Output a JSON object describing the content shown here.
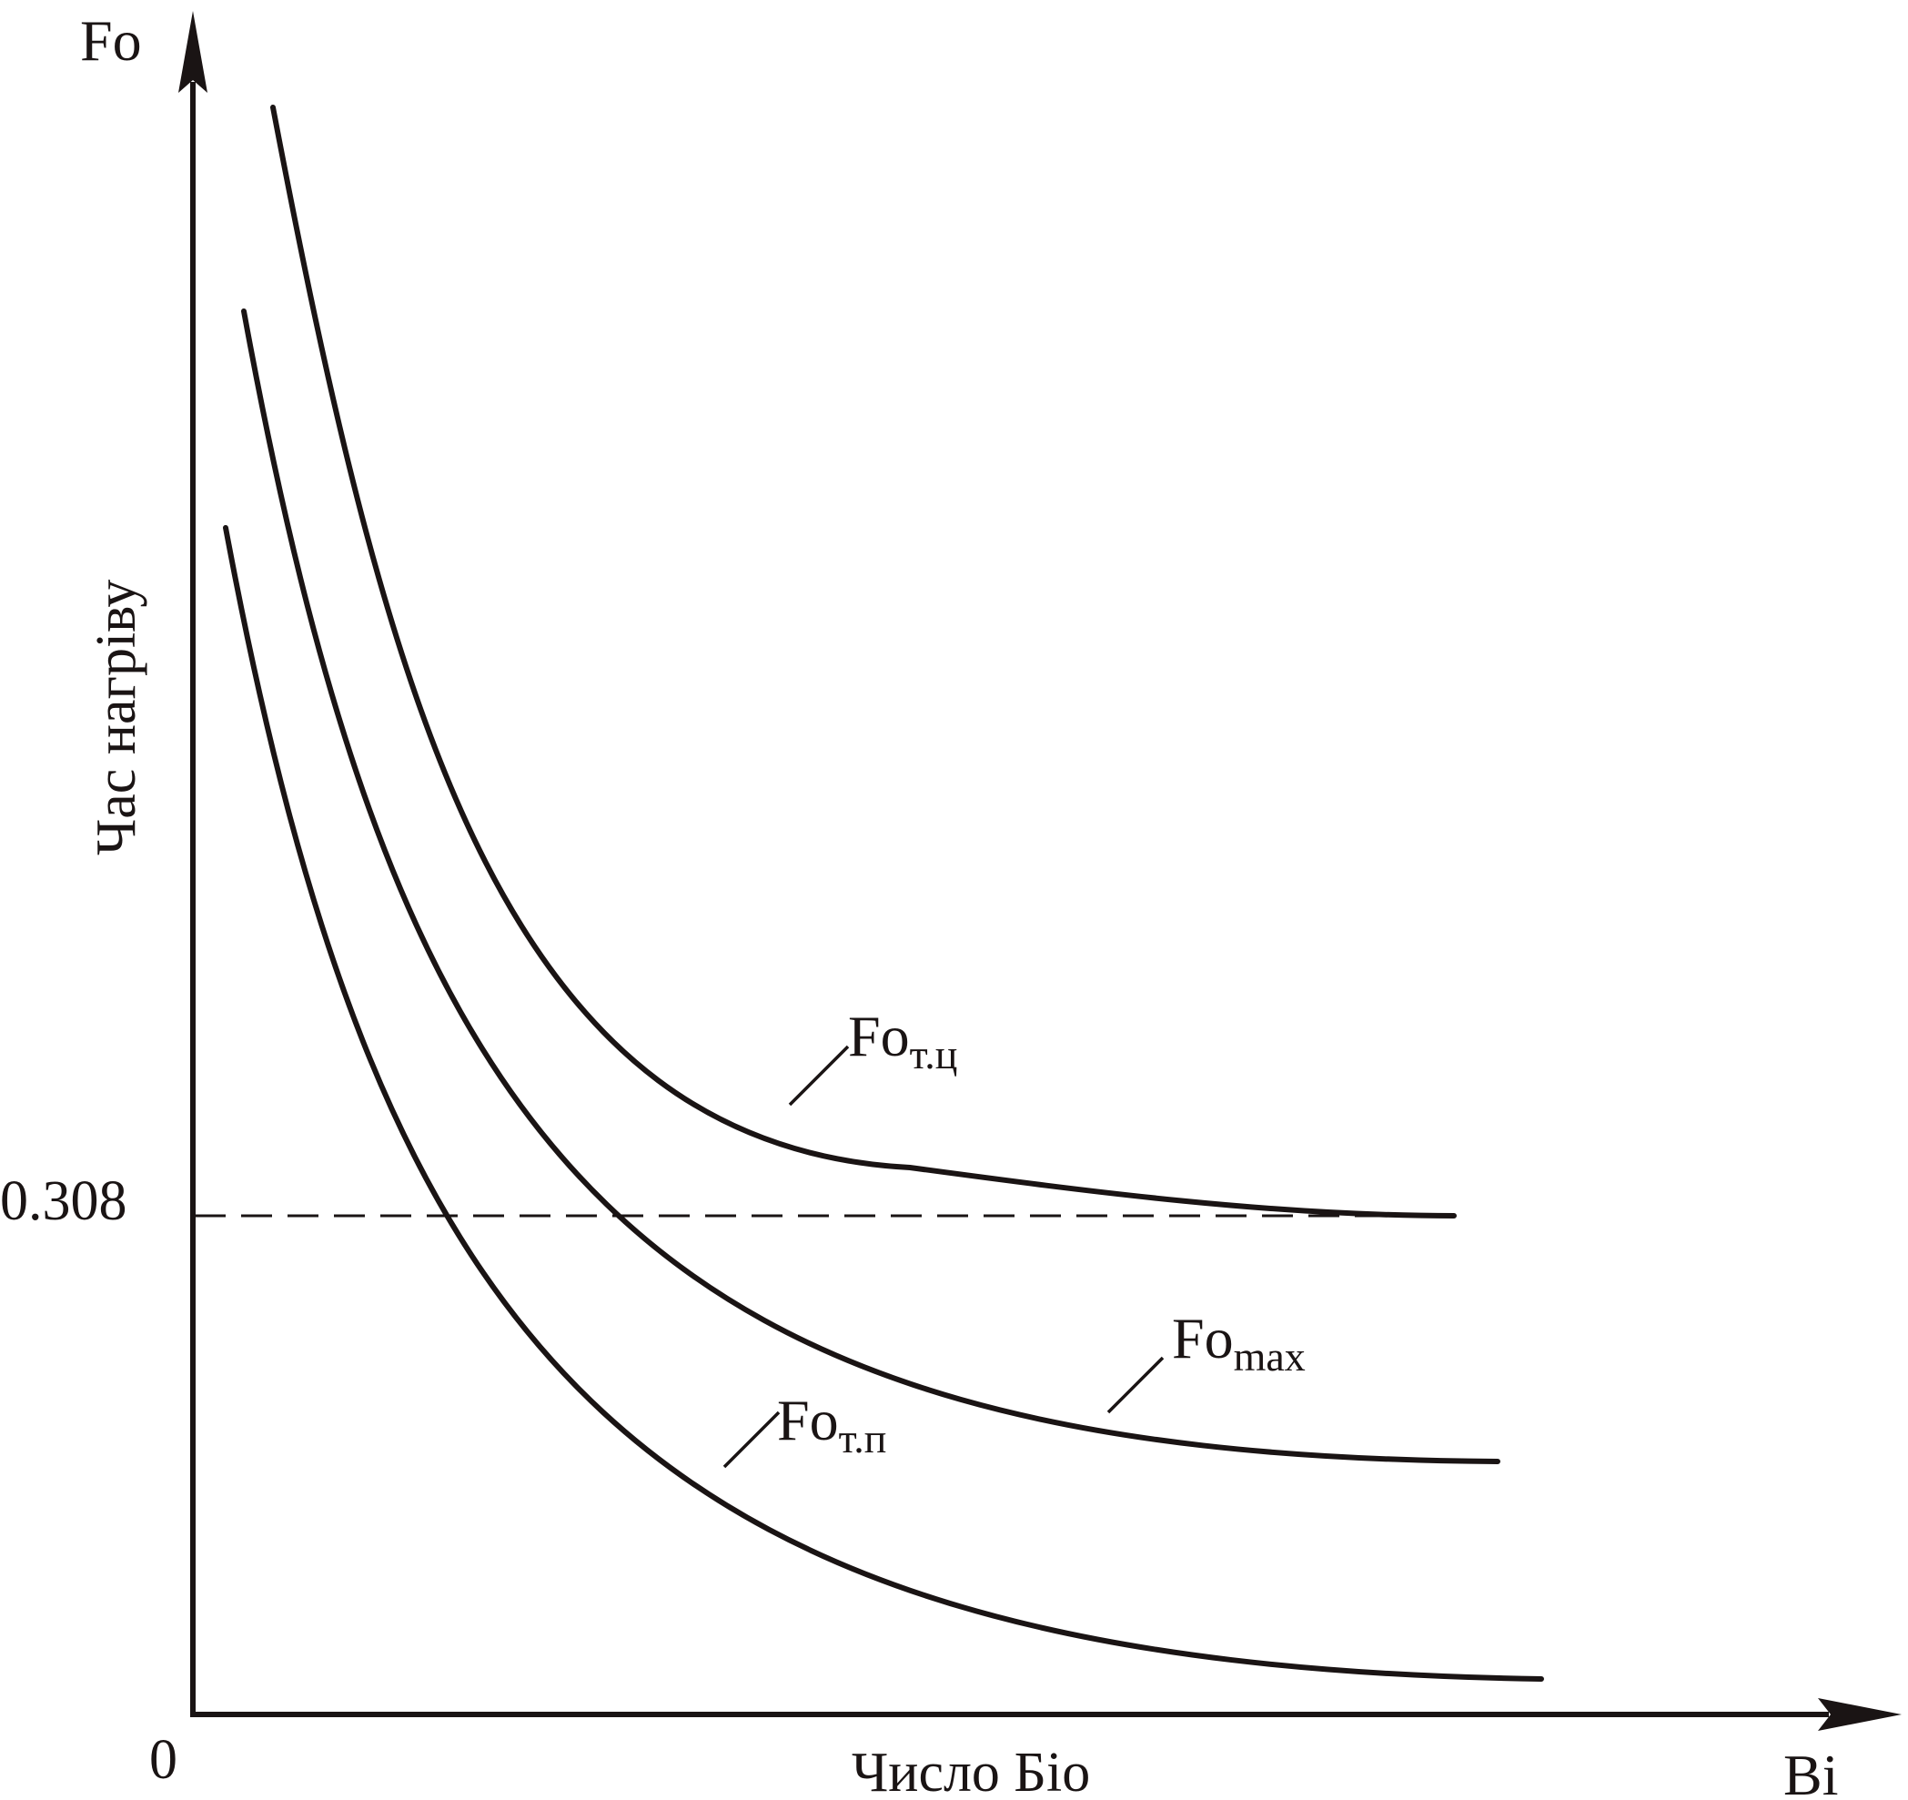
{
  "axes": {
    "y_symbol": "Fo",
    "x_symbol": "Bi",
    "y_title": "Час нагріву",
    "x_title": "Число Біо",
    "origin_label": "0",
    "reference_value": "0.308"
  },
  "curves": [
    {
      "id": "fo-t-ts",
      "base": "Fo",
      "subscript": "т.ц"
    },
    {
      "id": "fo-max",
      "base": "Fo",
      "subscript": "max"
    },
    {
      "id": "fo-t-p",
      "base": "Fo",
      "subscript": "т.п"
    }
  ],
  "colors": {
    "ink": "#1a1414",
    "background": "#ffffff"
  }
}
